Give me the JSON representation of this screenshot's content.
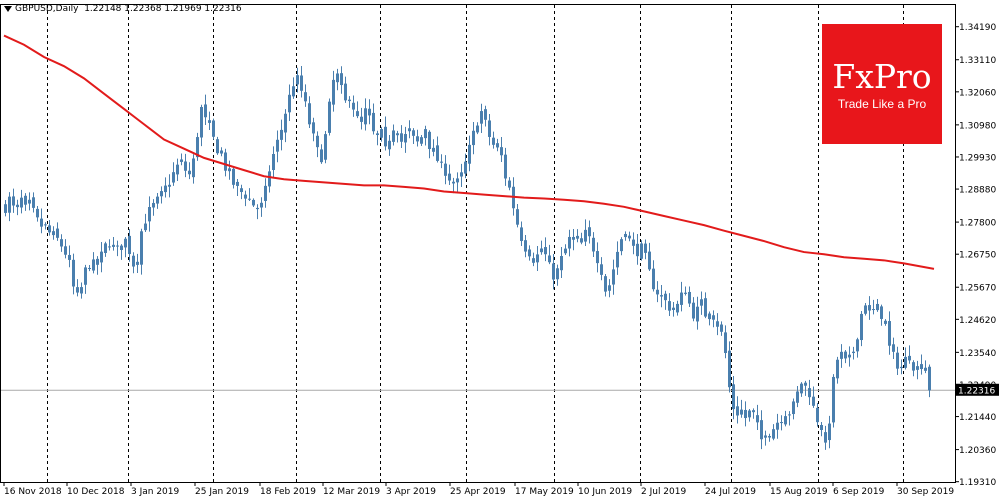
{
  "header": {
    "symbol": "GBPUSD,Daily",
    "ohlc": "1.22148 1.22368 1.21969 1.22316"
  },
  "logo": {
    "brand": "FxPro",
    "tagline": "Trade Like a Pro"
  },
  "colors": {
    "candle": "#4a7fae",
    "ma": "#e21b1b",
    "grid": "#000000",
    "price_line": "#a9a9a9"
  },
  "chart_data": {
    "type": "candlestick",
    "ylim": [
      1.193,
      1.349
    ],
    "y_ticks": [
      "1.34190",
      "1.33110",
      "1.32060",
      "1.30980",
      "1.29930",
      "1.28880",
      "1.27800",
      "1.26750",
      "1.25670",
      "1.24620",
      "1.23540",
      "1.22490",
      "1.21440",
      "1.20360",
      "1.19310"
    ],
    "x_ticks": [
      "16 Nov 2018",
      "10 Dec 2018",
      "3 Jan 2019",
      "25 Jan 2019",
      "18 Feb 2019",
      "12 Mar 2019",
      "3 Apr 2019",
      "25 Apr 2019",
      "17 May 2019",
      "10 Jun 2019",
      "2 Jul 2019",
      "24 Jul 2019",
      "15 Aug 2019",
      "6 Sep 2019",
      "30 Sep 2019"
    ],
    "current_price": "1.22316",
    "close_path": [
      [
        0,
        1.283
      ],
      [
        5,
        1.286
      ],
      [
        10,
        1.28
      ],
      [
        15,
        1.286
      ],
      [
        20,
        1.282
      ],
      [
        25,
        1.284
      ],
      [
        30,
        1.279
      ],
      [
        35,
        1.277
      ],
      [
        40,
        1.276
      ],
      [
        45,
        1.274
      ],
      [
        50,
        1.273
      ],
      [
        55,
        1.271
      ],
      [
        60,
        1.268
      ],
      [
        65,
        1.263
      ],
      [
        70,
        1.252
      ],
      [
        75,
        1.255
      ],
      [
        80,
        1.262
      ],
      [
        85,
        1.265
      ],
      [
        90,
        1.263
      ],
      [
        95,
        1.266
      ],
      [
        100,
        1.27
      ],
      [
        105,
        1.272
      ],
      [
        110,
        1.268
      ],
      [
        115,
        1.27
      ],
      [
        120,
        1.272
      ],
      [
        125,
        1.268
      ],
      [
        130,
        1.262
      ],
      [
        135,
        1.274
      ],
      [
        140,
        1.279
      ],
      [
        145,
        1.282
      ],
      [
        150,
        1.284
      ],
      [
        155,
        1.286
      ],
      [
        160,
        1.289
      ],
      [
        165,
        1.292
      ],
      [
        170,
        1.295
      ],
      [
        175,
        1.298
      ],
      [
        180,
        1.295
      ],
      [
        185,
        1.293
      ],
      [
        190,
        1.301
      ],
      [
        195,
        1.316
      ],
      [
        200,
        1.311
      ],
      [
        205,
        1.308
      ],
      [
        210,
        1.303
      ],
      [
        215,
        1.301
      ],
      [
        220,
        1.296
      ],
      [
        225,
        1.293
      ],
      [
        230,
        1.289
      ],
      [
        235,
        1.288
      ],
      [
        240,
        1.287
      ],
      [
        245,
        1.285
      ],
      [
        250,
        1.283
      ],
      [
        255,
        1.282
      ],
      [
        260,
        1.288
      ],
      [
        265,
        1.297
      ],
      [
        270,
        1.302
      ],
      [
        275,
        1.307
      ],
      [
        280,
        1.314
      ],
      [
        285,
        1.32
      ],
      [
        290,
        1.326
      ],
      [
        295,
        1.322
      ],
      [
        300,
        1.316
      ],
      [
        305,
        1.309
      ],
      [
        310,
        1.303
      ],
      [
        315,
        1.298
      ],
      [
        320,
        1.306
      ],
      [
        325,
        1.318
      ],
      [
        330,
        1.328
      ],
      [
        335,
        1.322
      ],
      [
        340,
        1.317
      ],
      [
        345,
        1.32
      ],
      [
        350,
        1.313
      ],
      [
        355,
        1.309
      ],
      [
        360,
        1.314
      ],
      [
        365,
        1.311
      ],
      [
        370,
        1.304
      ],
      [
        375,
        1.308
      ],
      [
        380,
        1.301
      ],
      [
        385,
        1.307
      ],
      [
        390,
        1.311
      ],
      [
        395,
        1.304
      ],
      [
        400,
        1.306
      ],
      [
        405,
        1.308
      ],
      [
        410,
        1.303
      ],
      [
        415,
        1.305
      ],
      [
        420,
        1.309
      ],
      [
        425,
        1.302
      ],
      [
        430,
        1.3
      ],
      [
        435,
        1.296
      ],
      [
        440,
        1.295
      ],
      [
        445,
        1.292
      ],
      [
        450,
        1.29
      ],
      [
        455,
        1.292
      ],
      [
        460,
        1.297
      ],
      [
        465,
        1.303
      ],
      [
        470,
        1.309
      ],
      [
        475,
        1.315
      ],
      [
        480,
        1.31
      ],
      [
        485,
        1.305
      ],
      [
        490,
        1.302
      ],
      [
        495,
        1.301
      ],
      [
        500,
        1.293
      ],
      [
        505,
        1.288
      ],
      [
        510,
        1.28
      ],
      [
        515,
        1.274
      ],
      [
        520,
        1.27
      ],
      [
        525,
        1.268
      ],
      [
        530,
        1.265
      ],
      [
        535,
        1.27
      ],
      [
        540,
        1.267
      ],
      [
        545,
        1.262
      ],
      [
        550,
        1.26
      ],
      [
        555,
        1.265
      ],
      [
        560,
        1.269
      ],
      [
        565,
        1.273
      ],
      [
        570,
        1.272
      ],
      [
        575,
        1.27
      ],
      [
        580,
        1.274
      ],
      [
        585,
        1.272
      ],
      [
        590,
        1.268
      ],
      [
        595,
        1.264
      ],
      [
        600,
        1.256
      ],
      [
        605,
        1.258
      ],
      [
        610,
        1.266
      ],
      [
        615,
        1.272
      ],
      [
        620,
        1.276
      ],
      [
        625,
        1.271
      ],
      [
        630,
        1.268
      ],
      [
        635,
        1.27
      ],
      [
        640,
        1.266
      ],
      [
        645,
        1.26
      ],
      [
        650,
        1.256
      ],
      [
        655,
        1.254
      ],
      [
        660,
        1.252
      ],
      [
        665,
        1.25
      ],
      [
        670,
        1.249
      ],
      [
        675,
        1.253
      ],
      [
        680,
        1.256
      ],
      [
        685,
        1.25
      ],
      [
        690,
        1.247
      ],
      [
        695,
        1.252
      ],
      [
        700,
        1.248
      ],
      [
        705,
        1.25
      ],
      [
        710,
        1.246
      ],
      [
        715,
        1.243
      ],
      [
        720,
        1.235
      ],
      [
        725,
        1.221
      ],
      [
        730,
        1.215
      ],
      [
        735,
        1.217
      ],
      [
        740,
        1.214
      ],
      [
        745,
        1.216
      ],
      [
        750,
        1.214
      ],
      [
        755,
        1.206
      ],
      [
        760,
        1.21
      ],
      [
        765,
        1.209
      ],
      [
        770,
        1.212
      ],
      [
        775,
        1.214
      ],
      [
        780,
        1.216
      ],
      [
        785,
        1.216
      ],
      [
        790,
        1.219
      ],
      [
        795,
        1.226
      ],
      [
        800,
        1.224
      ],
      [
        805,
        1.222
      ],
      [
        810,
        1.214
      ],
      [
        815,
        1.213
      ],
      [
        820,
        1.204
      ],
      [
        825,
        1.216
      ],
      [
        830,
        1.232
      ],
      [
        835,
        1.235
      ],
      [
        840,
        1.232
      ],
      [
        845,
        1.233
      ],
      [
        850,
        1.238
      ],
      [
        855,
        1.247
      ],
      [
        860,
        1.252
      ],
      [
        865,
        1.247
      ],
      [
        870,
        1.25
      ],
      [
        875,
        1.249
      ],
      [
        880,
        1.244
      ],
      [
        885,
        1.235
      ],
      [
        890,
        1.233
      ],
      [
        895,
        1.23
      ],
      [
        900,
        1.233
      ],
      [
        905,
        1.235
      ],
      [
        910,
        1.229
      ],
      [
        915,
        1.232
      ],
      [
        920,
        1.231
      ],
      [
        925,
        1.222
      ],
      [
        928,
        1.223
      ]
    ],
    "series": [
      {
        "name": "",
        "type": "ma_line",
        "points": [
          [
            0,
            1.339
          ],
          [
            20,
            1.336
          ],
          [
            40,
            1.332
          ],
          [
            60,
            1.329
          ],
          [
            80,
            1.325
          ],
          [
            100,
            1.32
          ],
          [
            120,
            1.315
          ],
          [
            140,
            1.31
          ],
          [
            160,
            1.305
          ],
          [
            180,
            1.302
          ],
          [
            200,
            1.299
          ],
          [
            220,
            1.297
          ],
          [
            240,
            1.295
          ],
          [
            260,
            1.293
          ],
          [
            280,
            1.292
          ],
          [
            300,
            1.2915
          ],
          [
            320,
            1.291
          ],
          [
            340,
            1.2905
          ],
          [
            360,
            1.29
          ],
          [
            380,
            1.29
          ],
          [
            400,
            1.2895
          ],
          [
            420,
            1.289
          ],
          [
            440,
            1.288
          ],
          [
            460,
            1.2875
          ],
          [
            480,
            1.287
          ],
          [
            500,
            1.2865
          ],
          [
            520,
            1.286
          ],
          [
            540,
            1.2857
          ],
          [
            560,
            1.2853
          ],
          [
            580,
            1.2848
          ],
          [
            600,
            1.284
          ],
          [
            620,
            1.283
          ],
          [
            640,
            1.2815
          ],
          [
            660,
            1.28
          ],
          [
            680,
            1.2785
          ],
          [
            700,
            1.277
          ],
          [
            720,
            1.2752
          ],
          [
            740,
            1.2735
          ],
          [
            760,
            1.2718
          ],
          [
            780,
            1.2698
          ],
          [
            800,
            1.2682
          ],
          [
            820,
            1.2675
          ],
          [
            840,
            1.2665
          ],
          [
            860,
            1.266
          ],
          [
            880,
            1.2655
          ],
          [
            900,
            1.2645
          ],
          [
            930,
            1.2627
          ]
        ]
      }
    ]
  }
}
